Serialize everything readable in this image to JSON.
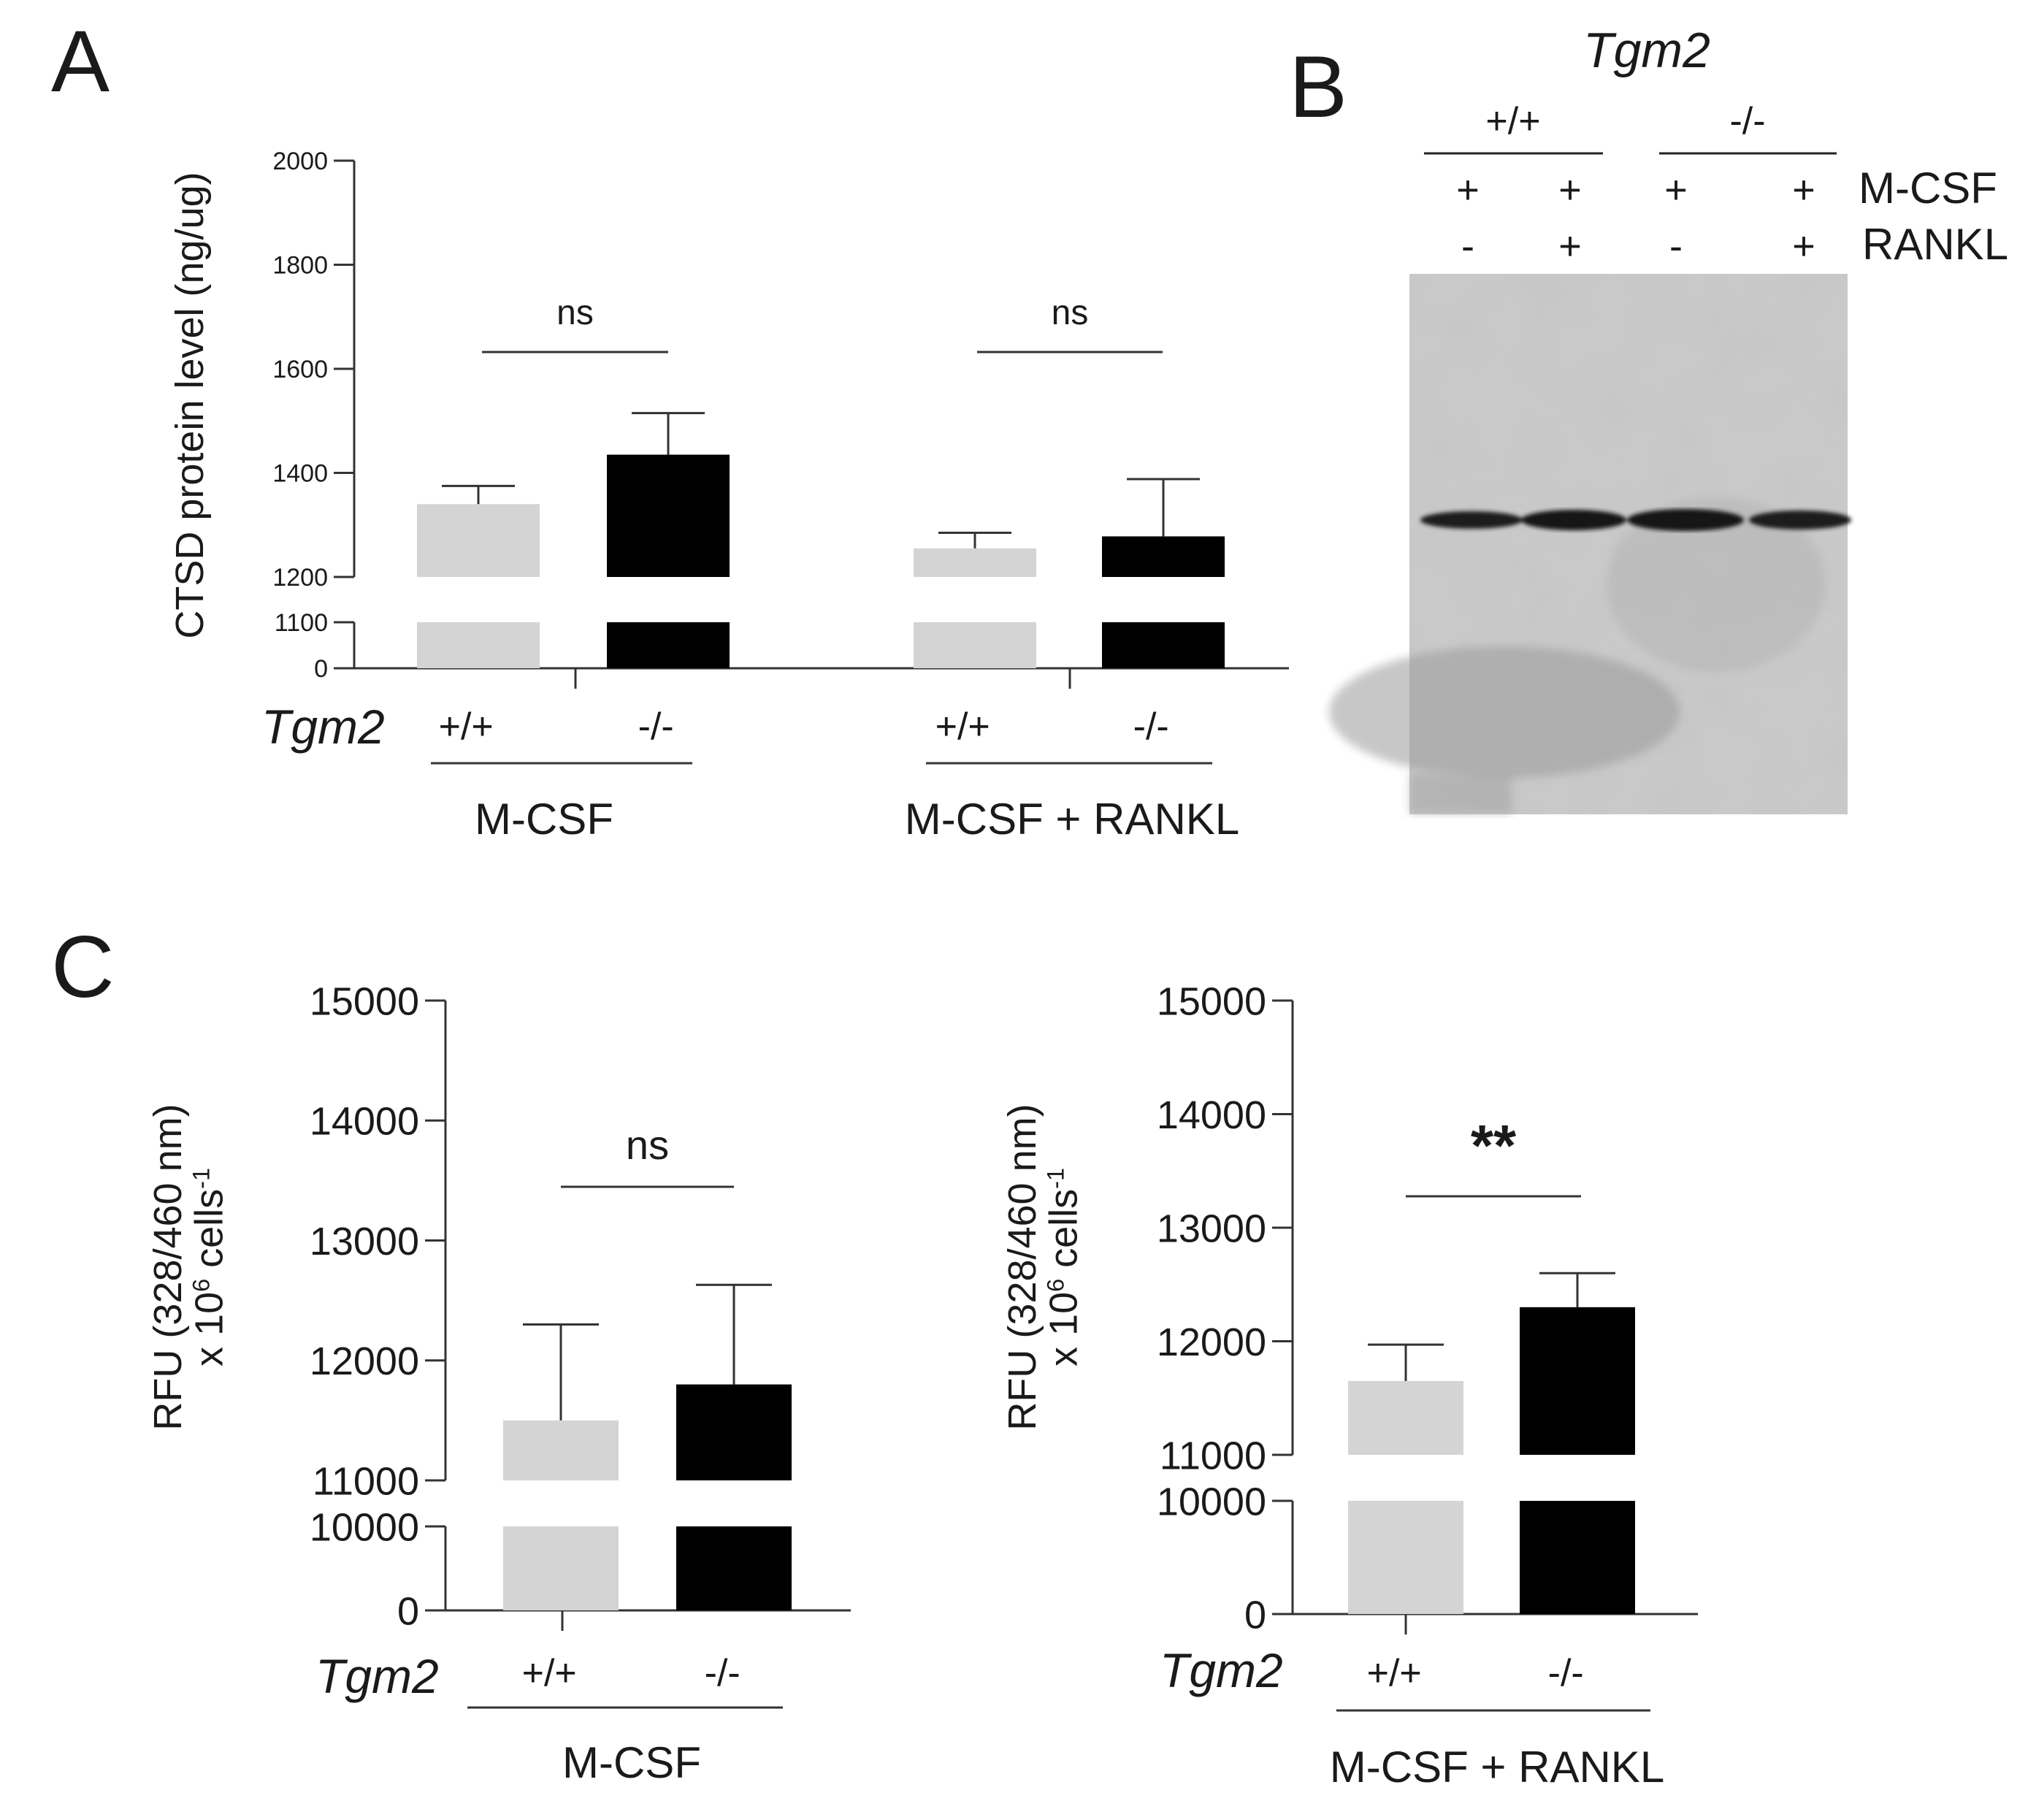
{
  "panels": {
    "A": {
      "label": "A"
    },
    "B": {
      "label": "B"
    },
    "C": {
      "label": "C"
    }
  },
  "colors": {
    "wild_type": "#d4d4d4",
    "knockout": "#000000",
    "axis": "#333333"
  },
  "chart_data": [
    {
      "id": "A",
      "type": "bar",
      "ylabel": "CTSD protein level (ng/ug)",
      "gene": "Tgm2",
      "broken_axis": {
        "lower_ticks": [
          "0",
          "1100"
        ],
        "upper_ticks": [
          "1200",
          "1400",
          "1600",
          "1800",
          "2000"
        ]
      },
      "ylim_lower": [
        0,
        1100
      ],
      "ylim_upper": [
        1200,
        2000
      ],
      "groups": [
        {
          "name": "M-CSF",
          "genotypes": [
            "+/+",
            "-/-"
          ],
          "values": [
            1340,
            1435
          ],
          "errors": [
            35,
            80
          ],
          "significance": "ns"
        },
        {
          "name": "M-CSF + RANKL",
          "genotypes": [
            "+/+",
            "-/-"
          ],
          "values": [
            1255,
            1278
          ],
          "errors": [
            30,
            110
          ],
          "significance": "ns"
        }
      ]
    },
    {
      "id": "C-left",
      "type": "bar",
      "ylabel_line1": "RFU (328/460 nm)",
      "ylabel_line2_pre": "x 10",
      "ylabel_line2_sup": "6",
      "ylabel_line2_mid": " cells",
      "ylabel_line2_sup2": "-1",
      "gene": "Tgm2",
      "broken_axis": {
        "lower_ticks": [
          "0",
          "10000"
        ],
        "upper_ticks": [
          "11000",
          "12000",
          "13000",
          "14000",
          "15000"
        ]
      },
      "ylim_lower": [
        0,
        10000
      ],
      "ylim_upper": [
        11000,
        15000
      ],
      "groups": [
        {
          "name": "M-CSF",
          "genotypes": [
            "+/+",
            "-/-"
          ],
          "values": [
            11500,
            11800
          ],
          "errors": [
            800,
            830
          ],
          "significance": "ns"
        }
      ]
    },
    {
      "id": "C-right",
      "type": "bar",
      "ylabel_line1": "RFU (328/460 nm)",
      "ylabel_line2_pre": "x 10",
      "ylabel_line2_sup": "6",
      "ylabel_line2_mid": " cells",
      "ylabel_line2_sup2": "-1",
      "gene": "Tgm2",
      "broken_axis": {
        "lower_ticks": [
          "0",
          "10000"
        ],
        "upper_ticks": [
          "11000",
          "12000",
          "13000",
          "14000",
          "15000"
        ]
      },
      "ylim_lower": [
        0,
        10000
      ],
      "ylim_upper": [
        11000,
        15000
      ],
      "groups": [
        {
          "name": "M-CSF + RANKL",
          "genotypes": [
            "+/+",
            "-/-"
          ],
          "values": [
            11650,
            12300
          ],
          "errors": [
            320,
            300
          ],
          "significance": "**"
        }
      ]
    }
  ],
  "western_blot": {
    "gene": "Tgm2",
    "genotype_groups": [
      "+/+",
      "-/-"
    ],
    "rows": [
      {
        "label": "M-CSF",
        "values": [
          "+",
          "+",
          "+",
          "+"
        ]
      },
      {
        "label": "RANKL",
        "values": [
          "-",
          "+",
          "-",
          "+"
        ]
      }
    ]
  }
}
